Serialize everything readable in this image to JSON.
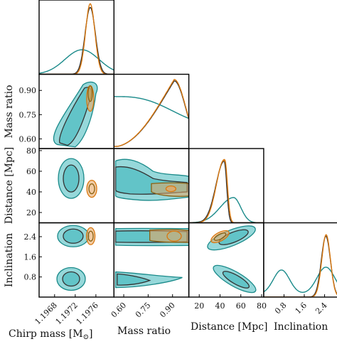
{
  "chart_data": {
    "type": "corner",
    "parameters": [
      {
        "key": "mc",
        "label": "Chirp mass [M",
        "label_sub": "⊙",
        "label_close": "]",
        "ticks": [
          "1.1968",
          "1.1972",
          "1.1976"
        ],
        "tick_values": [
          1.1968,
          1.1972,
          1.1976
        ],
        "range": [
          1.1965,
          1.19795
        ]
      },
      {
        "key": "q",
        "label": "Mass ratio",
        "ticks": [
          "0.60",
          "0.75",
          "0.90"
        ],
        "tick_values": [
          0.6,
          0.75,
          0.9
        ],
        "range": [
          0.54,
          1.0
        ]
      },
      {
        "key": "d",
        "label": "Distance [Mpc]",
        "ticks": [
          "20",
          "40",
          "60",
          "80"
        ],
        "tick_values": [
          20,
          40,
          60,
          80
        ],
        "range": [
          10,
          82
        ]
      },
      {
        "key": "incl",
        "label": "Inclination",
        "ticks": [
          "0.8",
          "1.6",
          "2.4"
        ],
        "tick_values": [
          0.8,
          1.6,
          2.4
        ],
        "range": [
          0.0,
          2.95
        ]
      }
    ],
    "series": [
      {
        "color": "#1a8a8a",
        "fill": "#3fb8bc"
      },
      {
        "color": "#d9780f",
        "fill": "#e8a866"
      },
      {
        "color": "#8a6010",
        "fill": "#c9a050"
      },
      {
        "color": "#333333",
        "fill": "#9a9a9a"
      }
    ],
    "marginals": {
      "mc": {
        "teal": {
          "peak": 1.19733,
          "width": 0.00033
        },
        "orange": {
          "peak": 1.19749,
          "width": 9e-05
        },
        "black": {
          "peak": 1.19749,
          "width": 0.0001
        }
      },
      "q": {
        "teal": "decreasing from 0.80 at 0.55 to 0.44 at 1.0",
        "orange": {
          "peak": 0.91,
          "width": 0.13
        },
        "black": {
          "peak": 0.91,
          "width": 0.13
        }
      },
      "d": {
        "teal": {
          "peak": 53,
          "width": 12
        },
        "orange": {
          "peak": 44,
          "width": 4
        },
        "black": {
          "peak": 44,
          "width": 5
        }
      },
      "incl": {
        "teal": {
          "modes": [
            0.7,
            2.45
          ]
        },
        "orange": {
          "peak": 2.45,
          "width": 0.17
        },
        "black": {
          "peak": 2.45,
          "width": 0.18
        }
      }
    }
  }
}
